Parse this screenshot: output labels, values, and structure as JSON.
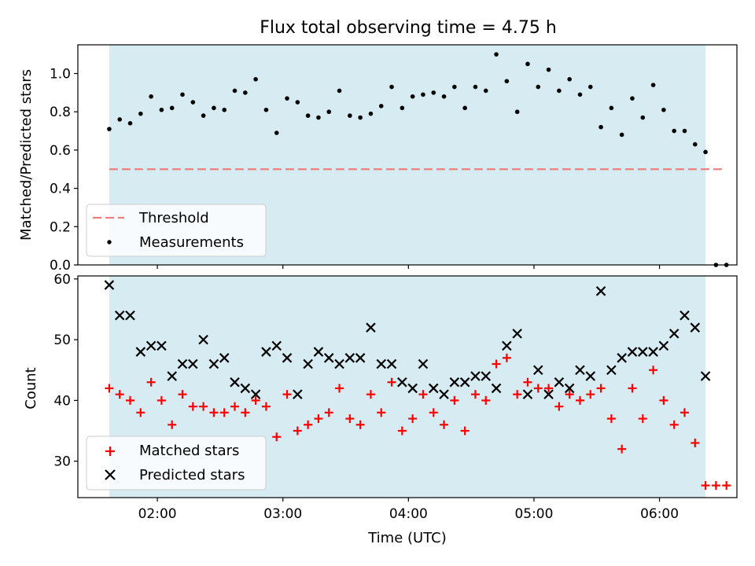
{
  "title": "Flux total observing time = 4.75 h",
  "colors": {
    "shade": "#add8e6",
    "threshold": "#f08080",
    "measurement": "#000000",
    "matched": "#ff0000",
    "predicted": "#000000"
  },
  "chart_data": [
    {
      "type": "scatter",
      "panel": "top",
      "ylabel": "Matched/Predicted stars",
      "xlabel": "",
      "ylim": [
        0.0,
        1.15
      ],
      "yticks": [
        0.0,
        0.2,
        0.4,
        0.6,
        0.8,
        1.0
      ],
      "ytick_labels": [
        "0.0",
        "0.2",
        "0.4",
        "0.6",
        "0.8",
        "1.0"
      ],
      "legend": {
        "placement": "lower-left",
        "threshold_label": "Threshold",
        "measurements_label": "Measurements"
      },
      "observing_window": {
        "start": "01:37",
        "end": "06:22"
      },
      "threshold": {
        "value": 0.5,
        "x_start": "01:37",
        "x_end": "06:30"
      },
      "measurements": {
        "x": [
          "01:37",
          "01:42",
          "01:47",
          "01:52",
          "01:57",
          "02:02",
          "02:07",
          "02:12",
          "02:17",
          "02:22",
          "02:27",
          "02:32",
          "02:37",
          "02:42",
          "02:47",
          "02:52",
          "02:57",
          "03:02",
          "03:07",
          "03:12",
          "03:17",
          "03:22",
          "03:27",
          "03:32",
          "03:37",
          "03:42",
          "03:47",
          "03:52",
          "03:57",
          "04:02",
          "04:07",
          "04:12",
          "04:17",
          "04:22",
          "04:27",
          "04:32",
          "04:37",
          "04:42",
          "04:47",
          "04:52",
          "04:57",
          "05:02",
          "05:07",
          "05:12",
          "05:17",
          "05:22",
          "05:27",
          "05:32",
          "05:37",
          "05:42",
          "05:47",
          "05:52",
          "05:57",
          "06:02",
          "06:07",
          "06:12",
          "06:17",
          "06:22",
          "06:27",
          "06:32"
        ],
        "y": [
          0.71,
          0.76,
          0.74,
          0.79,
          0.88,
          0.81,
          0.82,
          0.89,
          0.85,
          0.78,
          0.82,
          0.81,
          0.91,
          0.9,
          0.97,
          0.81,
          0.69,
          0.87,
          0.85,
          0.78,
          0.77,
          0.8,
          0.91,
          0.78,
          0.77,
          0.79,
          0.83,
          0.93,
          0.82,
          0.88,
          0.89,
          0.9,
          0.88,
          0.93,
          0.82,
          0.93,
          0.91,
          1.1,
          0.96,
          0.8,
          1.05,
          0.93,
          1.02,
          0.91,
          0.97,
          0.89,
          0.93,
          0.72,
          0.82,
          0.68,
          0.87,
          0.77,
          0.94,
          0.81,
          0.7,
          0.7,
          0.63,
          0.59,
          0.0,
          0.0
        ]
      }
    },
    {
      "type": "scatter",
      "panel": "bottom",
      "ylabel": "Count",
      "xlabel": "Time (UTC)",
      "ylim": [
        24,
        60.5
      ],
      "yticks": [
        30,
        40,
        50,
        60
      ],
      "ytick_labels": [
        "30",
        "40",
        "50",
        "60"
      ],
      "xlim": [
        "01:22",
        "06:37"
      ],
      "xticks": [
        "02:00",
        "03:00",
        "04:00",
        "05:00",
        "06:00"
      ],
      "xtick_labels": [
        "02:00",
        "03:00",
        "04:00",
        "05:00",
        "06:00"
      ],
      "legend": {
        "placement": "lower-left",
        "matched_label": "Matched stars",
        "predicted_label": "Predicted stars"
      },
      "observing_window": {
        "start": "01:37",
        "end": "06:22"
      },
      "series": [
        {
          "name": "Matched stars",
          "marker": "plus",
          "x": [
            "01:37",
            "01:42",
            "01:47",
            "01:52",
            "01:57",
            "02:02",
            "02:07",
            "02:12",
            "02:17",
            "02:22",
            "02:27",
            "02:32",
            "02:37",
            "02:42",
            "02:47",
            "02:52",
            "02:57",
            "03:02",
            "03:07",
            "03:12",
            "03:17",
            "03:22",
            "03:27",
            "03:32",
            "03:37",
            "03:42",
            "03:47",
            "03:52",
            "03:57",
            "04:02",
            "04:07",
            "04:12",
            "04:17",
            "04:22",
            "04:27",
            "04:32",
            "04:37",
            "04:42",
            "04:47",
            "04:52",
            "04:57",
            "05:02",
            "05:07",
            "05:12",
            "05:17",
            "05:22",
            "05:27",
            "05:32",
            "05:37",
            "05:42",
            "05:47",
            "05:52",
            "05:57",
            "06:02",
            "06:07",
            "06:12",
            "06:17",
            "06:22",
            "06:27",
            "06:32"
          ],
          "y": [
            42,
            41,
            40,
            38,
            43,
            40,
            36,
            41,
            39,
            39,
            38,
            38,
            39,
            38,
            40,
            39,
            34,
            41,
            35,
            36,
            37,
            38,
            42,
            37,
            36,
            41,
            38,
            43,
            35,
            37,
            41,
            38,
            36,
            40,
            35,
            41,
            40,
            46,
            47,
            41,
            43,
            42,
            42,
            39,
            41,
            40,
            41,
            42,
            37,
            32,
            42,
            37,
            45,
            40,
            36,
            38,
            33,
            26,
            26,
            26
          ]
        },
        {
          "name": "Predicted stars",
          "marker": "x",
          "x": [
            "01:37",
            "01:42",
            "01:47",
            "01:52",
            "01:57",
            "02:02",
            "02:07",
            "02:12",
            "02:17",
            "02:22",
            "02:27",
            "02:32",
            "02:37",
            "02:42",
            "02:47",
            "02:52",
            "02:57",
            "03:02",
            "03:07",
            "03:12",
            "03:17",
            "03:22",
            "03:27",
            "03:32",
            "03:37",
            "03:42",
            "03:47",
            "03:52",
            "03:57",
            "04:02",
            "04:07",
            "04:12",
            "04:17",
            "04:22",
            "04:27",
            "04:32",
            "04:37",
            "04:42",
            "04:47",
            "04:52",
            "04:57",
            "05:02",
            "05:07",
            "05:12",
            "05:17",
            "05:22",
            "05:27",
            "05:32",
            "05:37",
            "05:42",
            "05:47",
            "05:52",
            "05:57",
            "06:02",
            "06:07",
            "06:12",
            "06:17",
            "06:22"
          ],
          "y": [
            59,
            54,
            54,
            48,
            49,
            49,
            44,
            46,
            46,
            50,
            46,
            47,
            43,
            42,
            41,
            48,
            49,
            47,
            41,
            46,
            48,
            47,
            46,
            47,
            47,
            52,
            46,
            46,
            43,
            42,
            46,
            42,
            41,
            43,
            43,
            44,
            44,
            42,
            49,
            51,
            41,
            45,
            41,
            43,
            42,
            45,
            44,
            58,
            45,
            47,
            48,
            48,
            48,
            49,
            51,
            54,
            52,
            44
          ]
        }
      ]
    }
  ]
}
